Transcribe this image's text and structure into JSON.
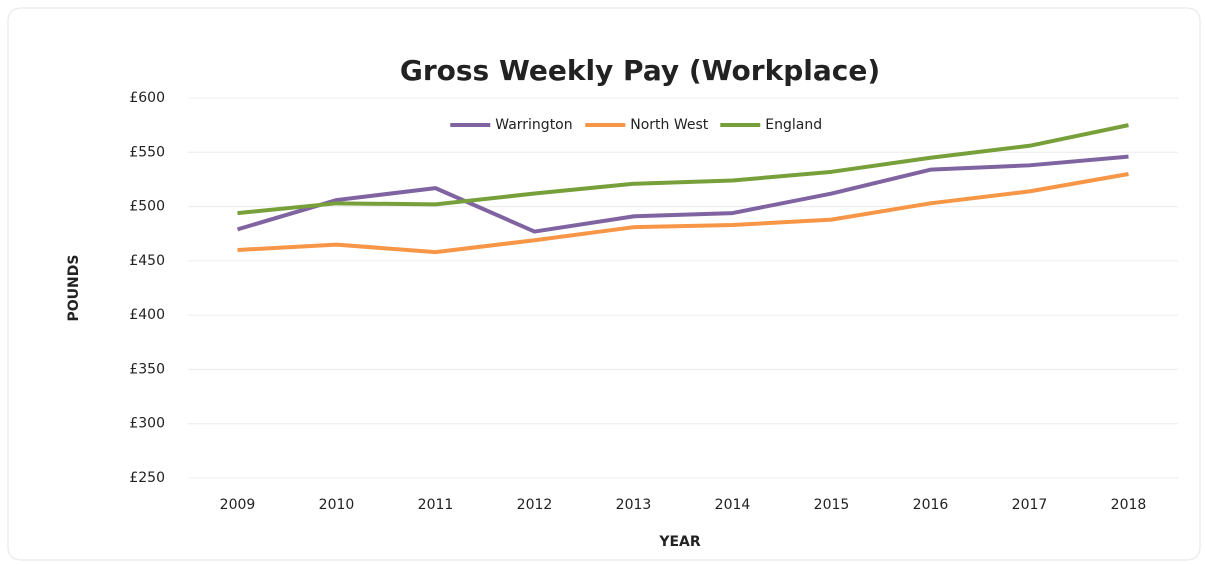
{
  "chart_data": {
    "type": "line",
    "title": "Gross Weekly Pay (Workplace)",
    "x_label": "YEAR",
    "y_label": "POUNDS",
    "categories": [
      "2009",
      "2010",
      "2011",
      "2012",
      "2013",
      "2014",
      "2015",
      "2016",
      "2017",
      "2018"
    ],
    "series": [
      {
        "name": "Warrington",
        "color": "#8064a2",
        "values": [
          479,
          506,
          517,
          477,
          491,
          494,
          512,
          534,
          538,
          546
        ]
      },
      {
        "name": "North West",
        "color": "#f79646",
        "values": [
          460,
          465,
          458,
          469,
          481,
          483,
          488,
          503,
          514,
          530
        ]
      },
      {
        "name": "England",
        "color": "#77a03a",
        "values": [
          494,
          503,
          502,
          512,
          521,
          524,
          532,
          545,
          556,
          575
        ]
      }
    ],
    "ylim": [
      250,
      600
    ],
    "yticks": [
      {
        "value": 250,
        "label": "£250"
      },
      {
        "value": 300,
        "label": "£300"
      },
      {
        "value": 350,
        "label": "£350"
      },
      {
        "value": 400,
        "label": "£400"
      },
      {
        "value": 450,
        "label": "£450"
      },
      {
        "value": 500,
        "label": "£500"
      },
      {
        "value": 550,
        "label": "£550"
      },
      {
        "value": 600,
        "label": "£600"
      }
    ],
    "grid": true,
    "legend": "top"
  }
}
